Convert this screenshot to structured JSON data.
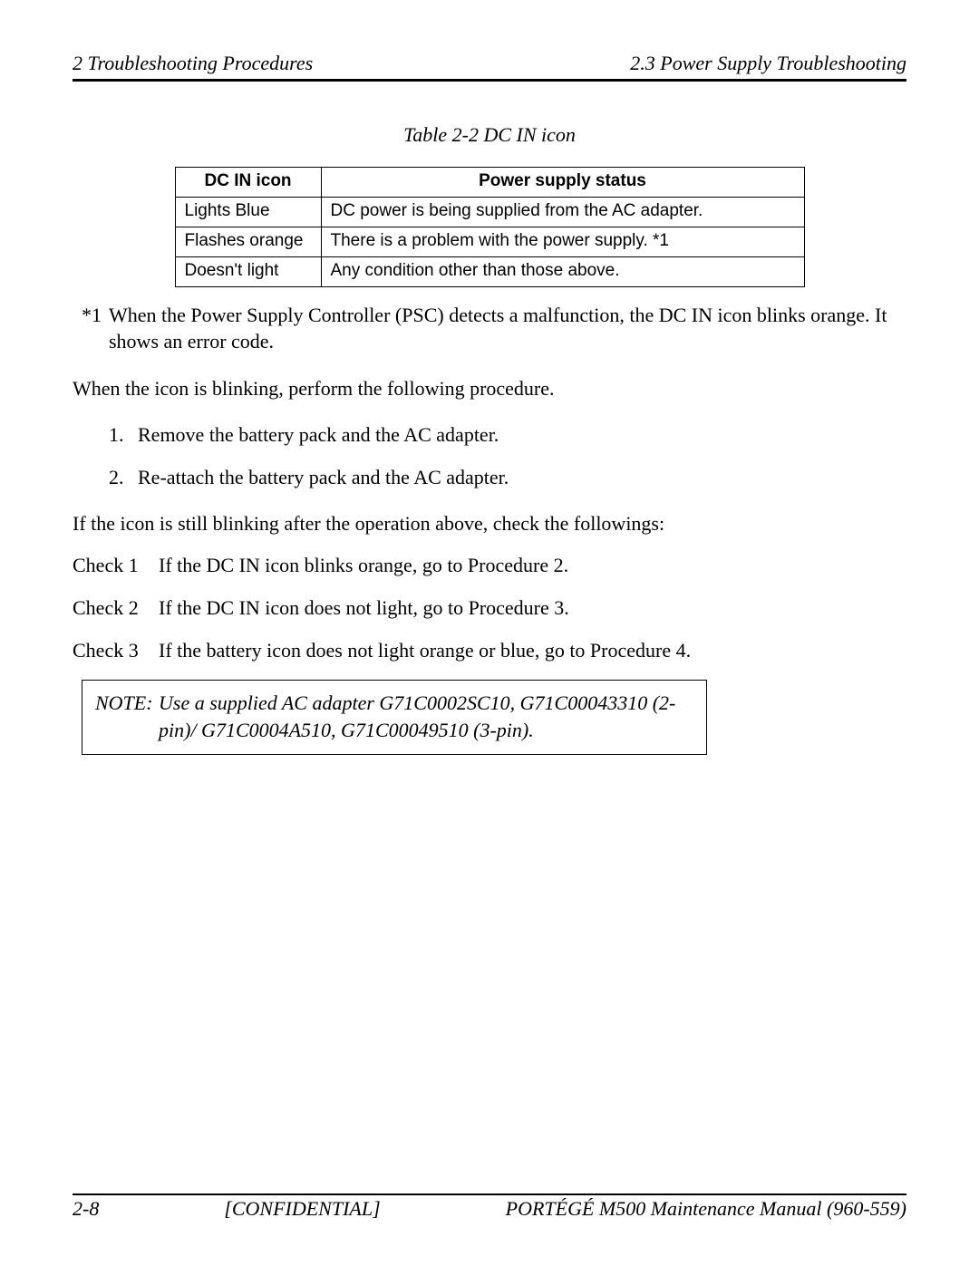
{
  "header": {
    "left": "2  Troubleshooting Procedures",
    "right": "2.3 Power Supply Troubleshooting"
  },
  "tableCaption": "Table 2-2  DC IN icon",
  "table": {
    "headers": [
      "DC IN icon",
      "Power supply status"
    ],
    "rows": [
      [
        "Lights Blue",
        "DC power is being supplied from the AC adapter."
      ],
      [
        "Flashes orange",
        "There is a problem with the power supply. *1"
      ],
      [
        "Doesn't light",
        "Any condition other than those above."
      ]
    ]
  },
  "footnote": {
    "label": "*1",
    "text": "When the Power Supply Controller (PSC) detects a malfunction, the DC IN icon blinks orange. It shows an error code."
  },
  "para1": "When the icon is blinking, perform the following procedure.",
  "steps": [
    "Remove the battery pack and the AC adapter.",
    "Re-attach the battery pack and the AC adapter."
  ],
  "para2": "If the icon is still blinking after the operation above, check the followings:",
  "checks": [
    {
      "label": "Check 1",
      "text": "If the DC IN icon blinks orange, go to Procedure 2."
    },
    {
      "label": "Check 2",
      "text": "If the DC IN icon does not light, go to Procedure 3."
    },
    {
      "label": "Check 3",
      "text": "If the battery icon does not light orange or blue, go to Procedure 4."
    }
  ],
  "note": {
    "label": "NOTE:",
    "text": "Use a supplied AC adapter G71C0002SC10, G71C00043310 (2-pin)/ G71C0004A510, G71C00049510 (3-pin)."
  },
  "footer": {
    "left": "2-8",
    "center": "[CONFIDENTIAL]",
    "right": "PORTÉGÉ M500 Maintenance Manual (960-559)"
  }
}
